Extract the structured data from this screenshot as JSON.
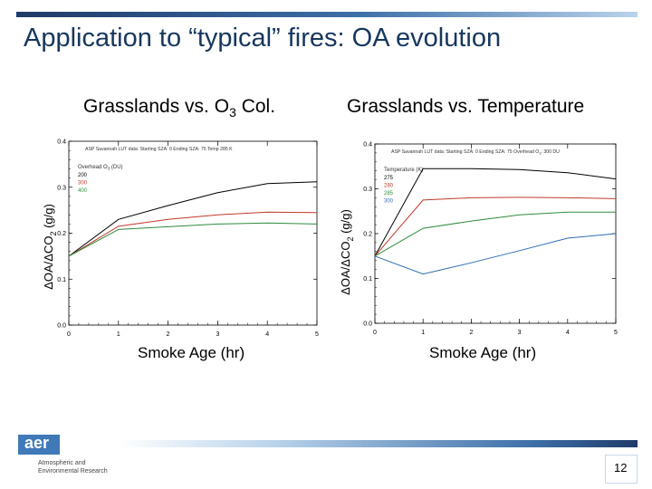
{
  "slide": {
    "title": "Application to “typical” fires: OA evolution",
    "page_number": "12",
    "logo": {
      "mark": "aer",
      "line1": "Atmospheric and",
      "line2": "Environmental Research"
    }
  },
  "panels": [
    {
      "panel_title_main": "Grasslands vs. O",
      "panel_title_sub": "3",
      "panel_title_tail": " Col.",
      "ylabel_main": "ΔOA/ΔCO",
      "ylabel_sub": "2",
      "ylabel_tail": " (g/g)",
      "xlabel": "Smoke Age (hr)",
      "header_text": "ASP Savannah LUT data:   Starting SZA: 0    Ending SZA: 75    Temp 285 K",
      "legend_title": "Overhead O",
      "legend_title_sub": "3",
      "legend_title_tail": " (DU)"
    },
    {
      "panel_title_main": "Grasslands vs. Temperature",
      "ylabel_main": "ΔOA/ΔCO",
      "ylabel_sub": "2",
      "ylabel_tail": " (g/g)",
      "xlabel": "Smoke Age (hr)",
      "header_text": "ASP Savannah LUT data:   Starting SZA: 0    Ending SZA: 75    Overhead O",
      "header_text_sub": "3",
      "header_text_tail": ": 300 DU",
      "legend_title": "Temperature (K)"
    }
  ],
  "chart_data": [
    {
      "type": "line",
      "title": "Grasslands vs. O3 Col.",
      "xlabel": "Smoke Age (hr)",
      "ylabel": "ΔOA/ΔCO2 (g/g)",
      "xlim": [
        0,
        5
      ],
      "ylim": [
        0.0,
        0.4
      ],
      "xticks": [
        "0",
        "1",
        "2",
        "3",
        "4",
        "5"
      ],
      "yticks": [
        "0.0",
        "0.1",
        "0.2",
        "0.3",
        "0.4"
      ],
      "legend_position": "top-left",
      "series": [
        {
          "name": "200",
          "color": "#000000",
          "x": [
            0,
            1,
            2,
            3,
            4,
            5
          ],
          "y": [
            0.15,
            0.23,
            0.26,
            0.288,
            0.308,
            0.312
          ]
        },
        {
          "name": "300",
          "color": "#c0392b",
          "x": [
            0,
            1,
            2,
            3,
            4,
            5
          ],
          "y": [
            0.15,
            0.215,
            0.23,
            0.24,
            0.246,
            0.245
          ]
        },
        {
          "name": "400",
          "color": "#2e8b3e",
          "x": [
            0,
            1,
            2,
            3,
            4,
            5
          ],
          "y": [
            0.15,
            0.208,
            0.214,
            0.22,
            0.222,
            0.22
          ]
        }
      ]
    },
    {
      "type": "line",
      "title": "Grasslands vs. Temperature",
      "xlabel": "Smoke Age (hr)",
      "ylabel": "ΔOA/ΔCO2 (g/g)",
      "xlim": [
        0,
        5
      ],
      "ylim": [
        0.0,
        0.4
      ],
      "xticks": [
        "0",
        "1",
        "2",
        "3",
        "4",
        "5"
      ],
      "yticks": [
        "0.0",
        "0.1",
        "0.2",
        "0.3",
        "0.4"
      ],
      "legend_position": "top-left",
      "series": [
        {
          "name": "275",
          "color": "#000000",
          "x": [
            0,
            1,
            2,
            3,
            4,
            5
          ],
          "y": [
            0.15,
            0.345,
            0.345,
            0.343,
            0.336,
            0.322
          ]
        },
        {
          "name": "280",
          "color": "#c0392b",
          "x": [
            0,
            1,
            2,
            3,
            4,
            5
          ],
          "y": [
            0.15,
            0.275,
            0.28,
            0.281,
            0.28,
            0.278
          ]
        },
        {
          "name": "285",
          "color": "#2e8b3e",
          "x": [
            0,
            1,
            2,
            3,
            4,
            5
          ],
          "y": [
            0.15,
            0.212,
            0.228,
            0.242,
            0.248,
            0.248
          ]
        },
        {
          "name": "300",
          "color": "#2f6db5",
          "x": [
            0,
            1,
            2,
            3,
            4,
            5
          ],
          "y": [
            0.15,
            0.11,
            0.135,
            0.162,
            0.19,
            0.2
          ]
        }
      ]
    }
  ]
}
